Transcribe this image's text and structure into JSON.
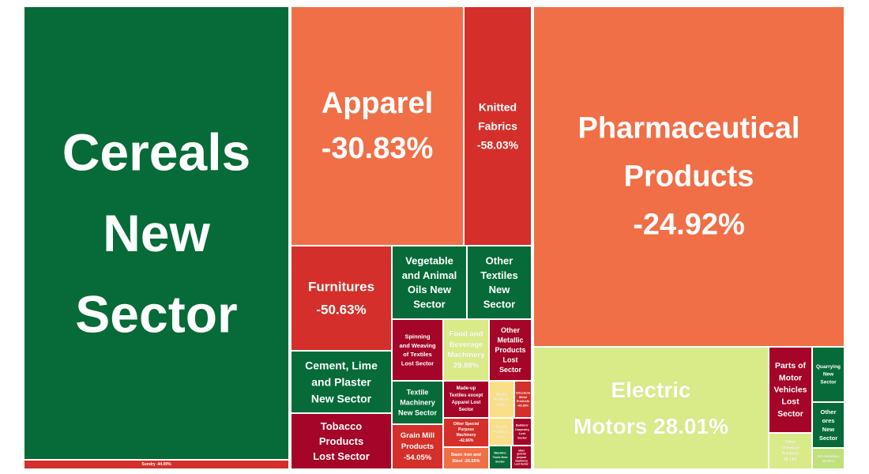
{
  "chart_data": {
    "type": "treemap",
    "title": "",
    "colors": {
      "dark_green": "#066b38",
      "light_green": "#d9ea88",
      "orange": "#f06f47",
      "red": "#d42f2a",
      "dark_red": "#a50528",
      "yellow": "#f9df87",
      "yellow_green": "#bfe17a"
    },
    "tiles": [
      {
        "id": "cereals",
        "label": [
          "Cereals",
          "New",
          "Sector"
        ],
        "value": null,
        "color": "dark_green"
      },
      {
        "id": "sundry",
        "label": [
          "Sundry -44.00%"
        ],
        "value": -44.0,
        "color": "red"
      },
      {
        "id": "apparel",
        "label": [
          "Apparel",
          "-30.83%"
        ],
        "value": -30.83,
        "color": "orange"
      },
      {
        "id": "knitted",
        "label": [
          "Knitted",
          "Fabrics",
          "-58.03%"
        ],
        "value": -58.03,
        "color": "red"
      },
      {
        "id": "furnitures",
        "label": [
          "Furnitures",
          "-50.63%"
        ],
        "value": -50.63,
        "color": "red"
      },
      {
        "id": "veg-oils",
        "label": [
          "Vegetable",
          "and Animal",
          "Oils New",
          "Sector"
        ],
        "value": null,
        "color": "dark_green"
      },
      {
        "id": "other-textiles",
        "label": [
          "Other",
          "Textiles",
          "New",
          "Sector"
        ],
        "value": null,
        "color": "dark_green"
      },
      {
        "id": "cement",
        "label": [
          "Cement, Lime",
          "and Plaster",
          "New Sector"
        ],
        "value": null,
        "color": "dark_green"
      },
      {
        "id": "tobacco",
        "label": [
          "Tobacco",
          "Products",
          "Lost Sector"
        ],
        "value": null,
        "color": "dark_red"
      },
      {
        "id": "spinning",
        "label": [
          "Spinning",
          "and Weaving",
          "of Textiles",
          "Lost Sector"
        ],
        "value": null,
        "color": "dark_red"
      },
      {
        "id": "food-bev-mach",
        "label": [
          "Food and",
          "Beverage",
          "Machinery",
          "29.88%"
        ],
        "value": 29.88,
        "color": "light_green"
      },
      {
        "id": "other-metallic",
        "label": [
          "Other",
          "Metallic",
          "Products",
          "Lost",
          "Sector"
        ],
        "value": null,
        "color": "dark_red"
      },
      {
        "id": "textile-mach",
        "label": [
          "Textile",
          "Machinery",
          "New Sector"
        ],
        "value": null,
        "color": "dark_green"
      },
      {
        "id": "madeup",
        "label": [
          "Made-up",
          "Textiles except",
          "Apparel Lost",
          "Sector"
        ],
        "value": null,
        "color": "dark_red"
      },
      {
        "id": "plastic",
        "label": [
          "Plastic",
          "Products",
          "5.83%"
        ],
        "value": 5.83,
        "color": "yellow"
      },
      {
        "id": "structural",
        "label": [
          "Structural",
          "Metal",
          "Products",
          "-69.88%"
        ],
        "value": -69.88,
        "color": "red"
      },
      {
        "id": "grain-mill",
        "label": [
          "Grain Mill",
          "Products",
          "-54.05%"
        ],
        "value": -54.05,
        "color": "red"
      },
      {
        "id": "other-special",
        "label": [
          "Other Special",
          "Purpose",
          "Machinery",
          "-42.66%"
        ],
        "value": -42.66,
        "color": "red"
      },
      {
        "id": "starch",
        "label": [
          "Starch",
          "Products",
          "8.5%"
        ],
        "value": 8.5,
        "color": "yellow"
      },
      {
        "id": "builders",
        "label": [
          "Builders'",
          "Carpentry",
          "Lost",
          "Sector"
        ],
        "value": null,
        "color": "dark_red"
      },
      {
        "id": "basic-iron",
        "label": [
          "Basic Iron and",
          "Steel -26.55%"
        ],
        "value": -26.55,
        "color": "orange"
      },
      {
        "id": "machine-tools",
        "label": [
          "Machine",
          "Tools New",
          "Sector"
        ],
        "value": null,
        "color": "dark_green"
      },
      {
        "id": "other-general",
        "label": [
          "other",
          "general",
          "purpose",
          "machinery",
          "Lost Sector"
        ],
        "value": null,
        "color": "dark_red"
      },
      {
        "id": "pharma",
        "label": [
          "Pharmaceutical",
          "Products",
          "-24.92%"
        ],
        "value": -24.92,
        "color": "orange"
      },
      {
        "id": "electric-motors",
        "label": [
          "Electric",
          "Motors 28.01%"
        ],
        "value": 28.01,
        "color": "light_green"
      },
      {
        "id": "parts-motor",
        "label": [
          "Parts of",
          "Motor",
          "Vehicles",
          "Lost",
          "Sector"
        ],
        "value": null,
        "color": "dark_red"
      },
      {
        "id": "quarrying",
        "label": [
          "Quarrying",
          "New",
          "Sector"
        ],
        "value": null,
        "color": "dark_green"
      },
      {
        "id": "other-ores",
        "label": [
          "Other",
          "ores",
          "New",
          "Sector"
        ],
        "value": null,
        "color": "dark_green"
      },
      {
        "id": "other-chemical",
        "label": [
          "Other",
          "Chemical",
          "Products",
          "36.14%"
        ],
        "value": 36.14,
        "color": "light_green"
      },
      {
        "id": "art-activities",
        "label": [
          "Art Activities",
          "46.02%"
        ],
        "value": 46.02,
        "color": "yellow_green"
      }
    ]
  }
}
